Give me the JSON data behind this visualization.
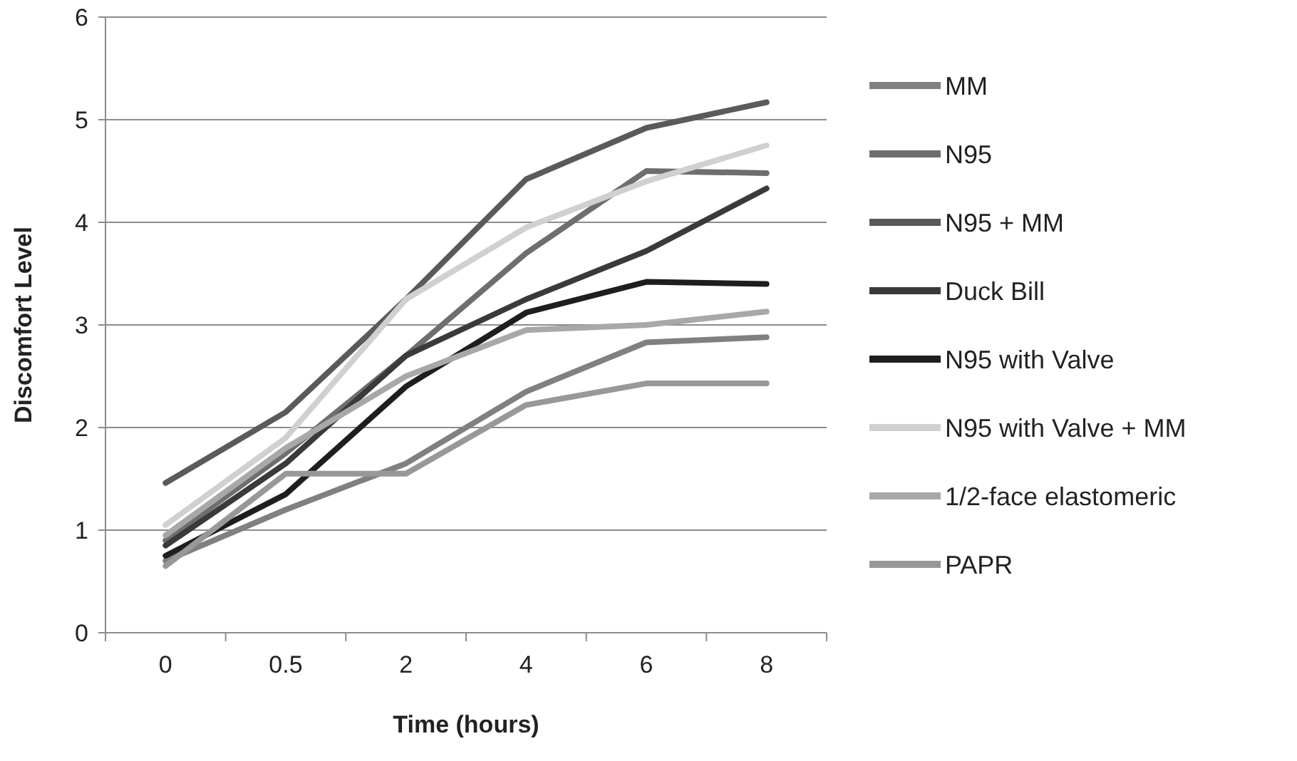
{
  "chart_data": {
    "type": "line",
    "xlabel": "Time (hours)",
    "ylabel": "Discomfort Level",
    "categories": [
      "0",
      "0.5",
      "2",
      "4",
      "6",
      "8"
    ],
    "ylim": [
      0,
      6
    ],
    "yticks": [
      0,
      1,
      2,
      3,
      4,
      5,
      6
    ],
    "grid": "y",
    "legend": "right",
    "marker": "none",
    "line_style": "solid",
    "series": [
      {
        "name": "MM",
        "color": "#808080",
        "values": [
          0.7,
          1.2,
          1.65,
          2.35,
          2.83,
          2.88
        ]
      },
      {
        "name": "N95",
        "color": "#6e6e6e",
        "values": [
          0.9,
          1.75,
          2.7,
          3.7,
          4.5,
          4.48
        ]
      },
      {
        "name": "N95 + MM",
        "color": "#5a5a5a",
        "values": [
          1.46,
          2.15,
          3.25,
          4.42,
          4.92,
          5.17
        ]
      },
      {
        "name": "Duck Bill",
        "color": "#3a3a3a",
        "values": [
          0.85,
          1.65,
          2.7,
          3.25,
          3.72,
          4.33
        ]
      },
      {
        "name": "N95 with Valve",
        "color": "#1e1e1e",
        "values": [
          0.75,
          1.35,
          2.4,
          3.12,
          3.42,
          3.4
        ]
      },
      {
        "name": "N95 with Valve + MM",
        "color": "#d0d0d0",
        "values": [
          1.05,
          1.9,
          3.25,
          3.95,
          4.4,
          4.75
        ]
      },
      {
        "name": "1/2-face elastomeric",
        "color": "#a8a8a8",
        "values": [
          0.95,
          1.8,
          2.5,
          2.95,
          3.0,
          3.13
        ]
      },
      {
        "name": "PAPR",
        "color": "#989898",
        "values": [
          0.65,
          1.55,
          1.55,
          2.22,
          2.43,
          2.43
        ]
      }
    ]
  }
}
